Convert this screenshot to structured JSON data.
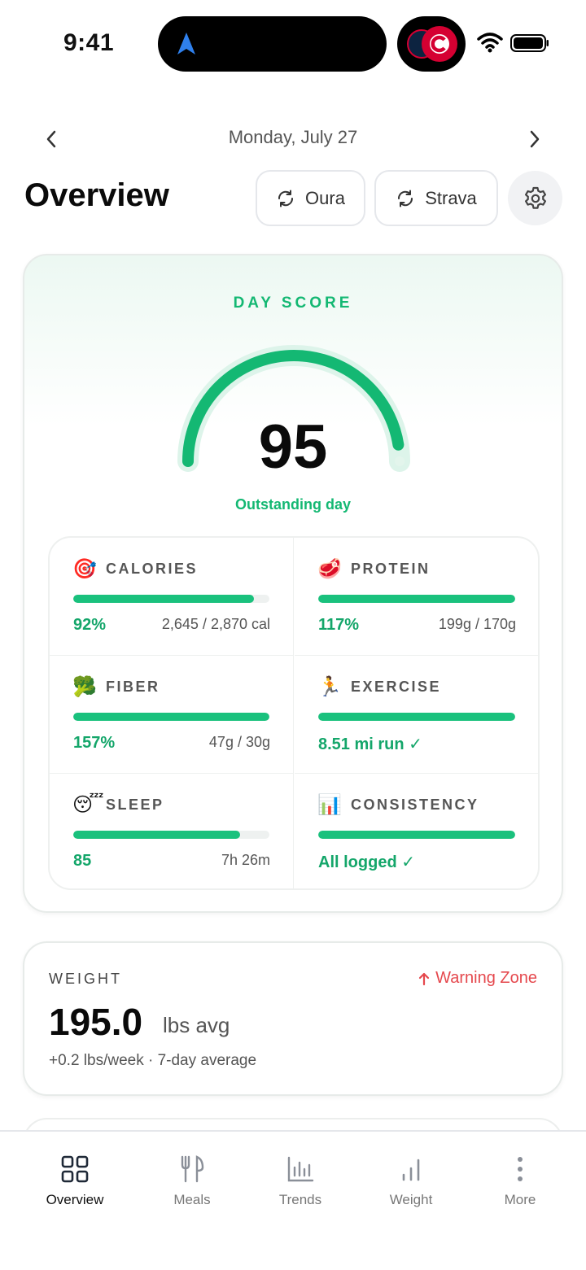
{
  "status_bar": {
    "time": "9:41"
  },
  "header": {
    "date": "Monday, July 27",
    "title": "Overview",
    "sync_buttons": [
      {
        "label": "Oura",
        "icon": "refresh-icon"
      },
      {
        "label": "Strava",
        "icon": "refresh-icon"
      }
    ],
    "settings_icon": "gear-icon"
  },
  "day_score": {
    "label": "DAY SCORE",
    "value": "95",
    "score_fraction": 0.95,
    "caption": "Outstanding day",
    "accent_color": "#14b873"
  },
  "metrics": [
    {
      "emoji": "🎯",
      "name": "CALORIES",
      "percent_fill": 0.92,
      "primary": "92%",
      "secondary": "2,645 / 2,870 cal"
    },
    {
      "emoji": "🥩",
      "name": "PROTEIN",
      "percent_fill": 1.0,
      "primary": "117%",
      "secondary": "199g / 170g"
    },
    {
      "emoji": "🥦",
      "name": "FIBER",
      "percent_fill": 1.0,
      "primary": "157%",
      "secondary": "47g / 30g"
    },
    {
      "emoji": "🏃",
      "name": "EXERCISE",
      "percent_fill": 1.0,
      "primary": "8.51 mi run ✓",
      "secondary": ""
    },
    {
      "emoji": "😴",
      "name": "SLEEP",
      "percent_fill": 0.85,
      "primary": "85",
      "secondary": "7h 26m"
    },
    {
      "emoji": "📊",
      "name": "CONSISTENCY",
      "percent_fill": 1.0,
      "primary": "All logged ✓",
      "secondary": ""
    }
  ],
  "weight": {
    "label": "WEIGHT",
    "warning": "Warning Zone",
    "warning_color": "#e5484d",
    "value": "195.0",
    "unit": "lbs avg",
    "subtitle": "+0.2 lbs/week · 7-day average"
  },
  "tabs": [
    {
      "label": "Overview",
      "icon": "grid-icon",
      "active": true
    },
    {
      "label": "Meals",
      "icon": "utensils-icon",
      "active": false
    },
    {
      "label": "Trends",
      "icon": "bar-chart-icon",
      "active": false
    },
    {
      "label": "Weight",
      "icon": "signal-bars-icon",
      "active": false
    },
    {
      "label": "More",
      "icon": "more-vertical-icon",
      "active": false
    }
  ]
}
